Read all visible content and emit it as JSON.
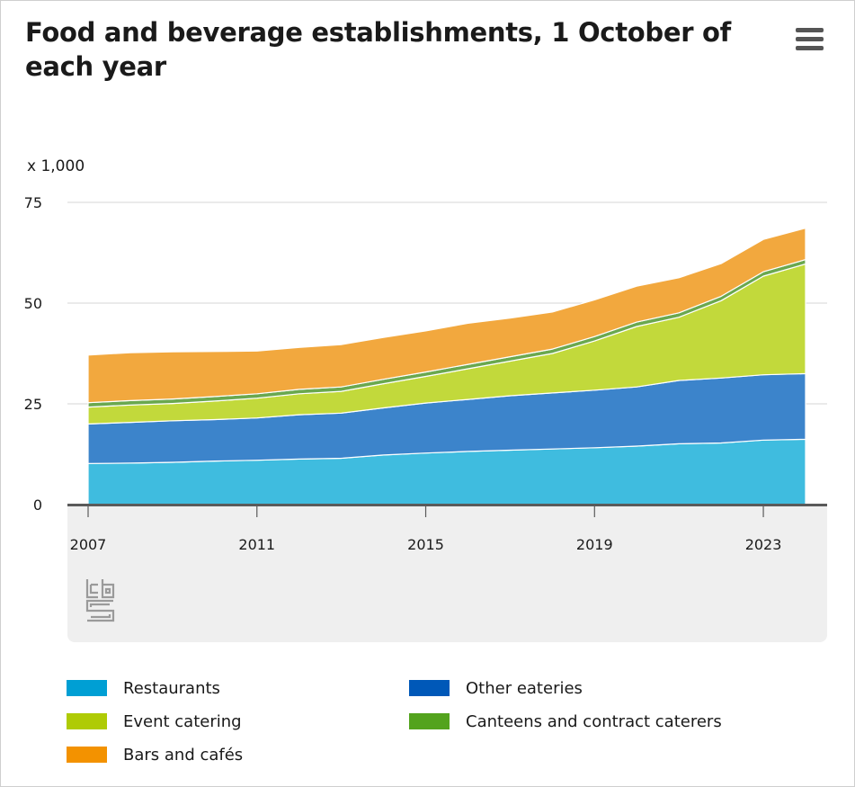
{
  "header": {
    "title": "Food and beverage establishments, 1 October of each year",
    "menu_icon": "hamburger-menu-icon"
  },
  "chart_data": {
    "type": "area",
    "stacked": true,
    "title": "Food and beverage establishments, 1 October of each year",
    "unit_label": "x 1,000",
    "x": [
      2007,
      2008,
      2009,
      2010,
      2011,
      2012,
      2013,
      2014,
      2015,
      2016,
      2017,
      2018,
      2019,
      2020,
      2021,
      2022,
      2023,
      2024
    ],
    "x_ticks": [
      "2007",
      "2011",
      "2015",
      "2019",
      "2023"
    ],
    "y_ticks": [
      "0",
      "25",
      "50",
      "75"
    ],
    "ylim": [
      0,
      75
    ],
    "grid": true,
    "legend_position": "bottom",
    "series": [
      {
        "name": "Restaurants",
        "color": "#3fbcdf",
        "values": [
          10.2,
          10.3,
          10.5,
          10.8,
          11.0,
          11.3,
          11.5,
          12.3,
          12.8,
          13.2,
          13.5,
          13.8,
          14.1,
          14.5,
          15.1,
          15.3,
          16.0,
          16.2
        ]
      },
      {
        "name": "Other eateries",
        "color": "#3c84cb",
        "values": [
          9.8,
          10.1,
          10.3,
          10.3,
          10.5,
          11.0,
          11.2,
          11.7,
          12.4,
          12.9,
          13.5,
          13.9,
          14.3,
          14.7,
          15.7,
          16.1,
          16.2,
          16.3
        ]
      },
      {
        "name": "Event catering",
        "color": "#c2d93b",
        "values": [
          4.2,
          4.3,
          4.3,
          4.6,
          4.9,
          5.2,
          5.4,
          6.0,
          6.6,
          7.6,
          8.6,
          9.8,
          12.2,
          15.0,
          15.7,
          19.2,
          24.5,
          27.2
        ]
      },
      {
        "name": "Canteens and contract caterers",
        "color": "#6aa84f",
        "values": [
          1.1,
          1.1,
          1.1,
          1.1,
          1.1,
          1.1,
          1.1,
          1.1,
          1.1,
          1.1,
          1.1,
          1.1,
          1.1,
          1.1,
          1.1,
          1.1,
          1.1,
          1.1
        ]
      },
      {
        "name": "Bars and cafés",
        "color": "#f2a83e",
        "values": [
          11.8,
          11.9,
          11.7,
          11.2,
          10.6,
          10.4,
          10.5,
          10.4,
          10.2,
          10.2,
          9.6,
          9.2,
          9.1,
          8.9,
          8.7,
          8.1,
          8.0,
          7.8
        ]
      }
    ]
  },
  "legend": [
    {
      "label": "Restaurants",
      "color": "#009fd4"
    },
    {
      "label": "Other eateries",
      "color": "#0058b8"
    },
    {
      "label": "Event catering",
      "color": "#afcb05"
    },
    {
      "label": "Canteens and contract caterers",
      "color": "#53a31d"
    },
    {
      "label": "Bars and cafés",
      "color": "#f39200"
    }
  ],
  "logo_icon": "cbs-logo-icon"
}
